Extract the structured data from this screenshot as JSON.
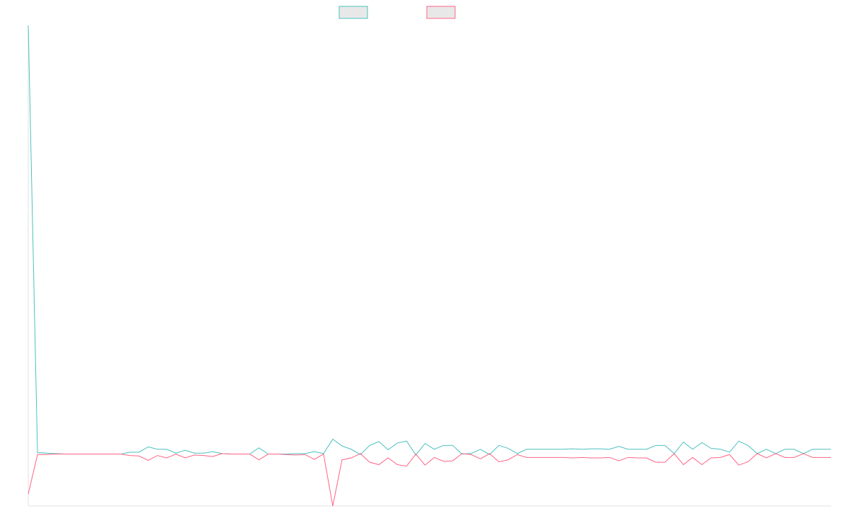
{
  "chart_data": {
    "type": "line",
    "title": "",
    "xlabel": "",
    "ylabel": "",
    "grid": false,
    "legend_position": "top-center",
    "x": [
      1,
      2,
      3,
      4,
      5,
      6,
      7,
      8,
      9,
      10,
      11,
      12,
      13,
      14,
      15,
      16,
      17,
      18,
      19,
      20,
      21,
      22,
      23,
      24,
      25,
      26,
      27,
      28,
      29,
      30,
      31,
      32,
      33,
      34,
      35,
      36,
      37,
      38,
      39,
      40,
      41,
      42,
      43,
      44,
      45,
      46,
      47,
      48,
      49,
      50,
      51,
      52,
      53,
      54,
      55,
      56,
      57,
      58,
      59,
      60,
      61,
      62,
      63,
      64,
      65,
      66,
      67,
      68,
      69,
      70,
      71,
      72,
      73,
      74,
      75,
      76,
      77,
      78,
      79,
      80,
      81,
      82,
      83,
      84,
      85,
      86,
      87,
      88
    ],
    "xlim": [
      1,
      88
    ],
    "ylim": [
      0,
      100
    ],
    "series": [
      {
        "name": "",
        "color": "#4bc0c0",
        "values": [
          100,
          11.1,
          11.0,
          10.9,
          10.8,
          10.8,
          10.8,
          10.8,
          10.8,
          10.8,
          10.8,
          11.2,
          11.2,
          12.3,
          11.8,
          11.8,
          11.0,
          11.6,
          11.0,
          11.0,
          11.3,
          10.9,
          10.8,
          10.8,
          10.8,
          12.1,
          10.8,
          10.8,
          10.8,
          10.9,
          10.9,
          11.3,
          10.9,
          13.9,
          12.5,
          11.8,
          10.7,
          12.6,
          13.4,
          11.7,
          13.1,
          13.5,
          10.6,
          13.0,
          11.8,
          12.6,
          12.6,
          10.8,
          10.9,
          11.8,
          10.7,
          12.6,
          12.0,
          10.9,
          11.8,
          11.8,
          11.8,
          11.8,
          11.8,
          11.9,
          11.8,
          11.9,
          11.9,
          11.8,
          12.4,
          11.8,
          11.8,
          11.8,
          12.6,
          12.6,
          10.9,
          13.3,
          11.8,
          13.2,
          12.0,
          11.8,
          11.2,
          13.5,
          12.6,
          10.9,
          11.8,
          10.9,
          11.8,
          11.8,
          10.9,
          11.8,
          11.8,
          11.8
        ]
      },
      {
        "name": "",
        "color": "#ff6384",
        "values": [
          2.5,
          10.7,
          10.7,
          10.8,
          10.8,
          10.8,
          10.8,
          10.8,
          10.8,
          10.8,
          10.8,
          10.5,
          10.4,
          9.5,
          10.5,
          10.0,
          10.8,
          10.0,
          10.6,
          10.5,
          10.3,
          10.9,
          10.8,
          10.8,
          10.8,
          9.6,
          10.8,
          10.8,
          10.7,
          10.6,
          10.7,
          9.7,
          10.8,
          0.0,
          9.6,
          10.0,
          10.9,
          9.1,
          8.6,
          10.0,
          8.6,
          8.3,
          10.8,
          8.5,
          10.1,
          9.3,
          9.4,
          10.9,
          10.7,
          9.8,
          10.9,
          9.2,
          9.6,
          10.7,
          10.1,
          10.1,
          10.1,
          10.1,
          10.1,
          10.0,
          10.1,
          10.0,
          10.0,
          10.1,
          9.4,
          10.1,
          10.0,
          10.0,
          9.1,
          9.1,
          10.9,
          8.6,
          10.1,
          8.6,
          10.0,
          10.1,
          10.7,
          8.5,
          9.2,
          10.9,
          10.0,
          10.9,
          10.1,
          10.1,
          10.9,
          10.1,
          10.1,
          10.1
        ]
      }
    ]
  }
}
